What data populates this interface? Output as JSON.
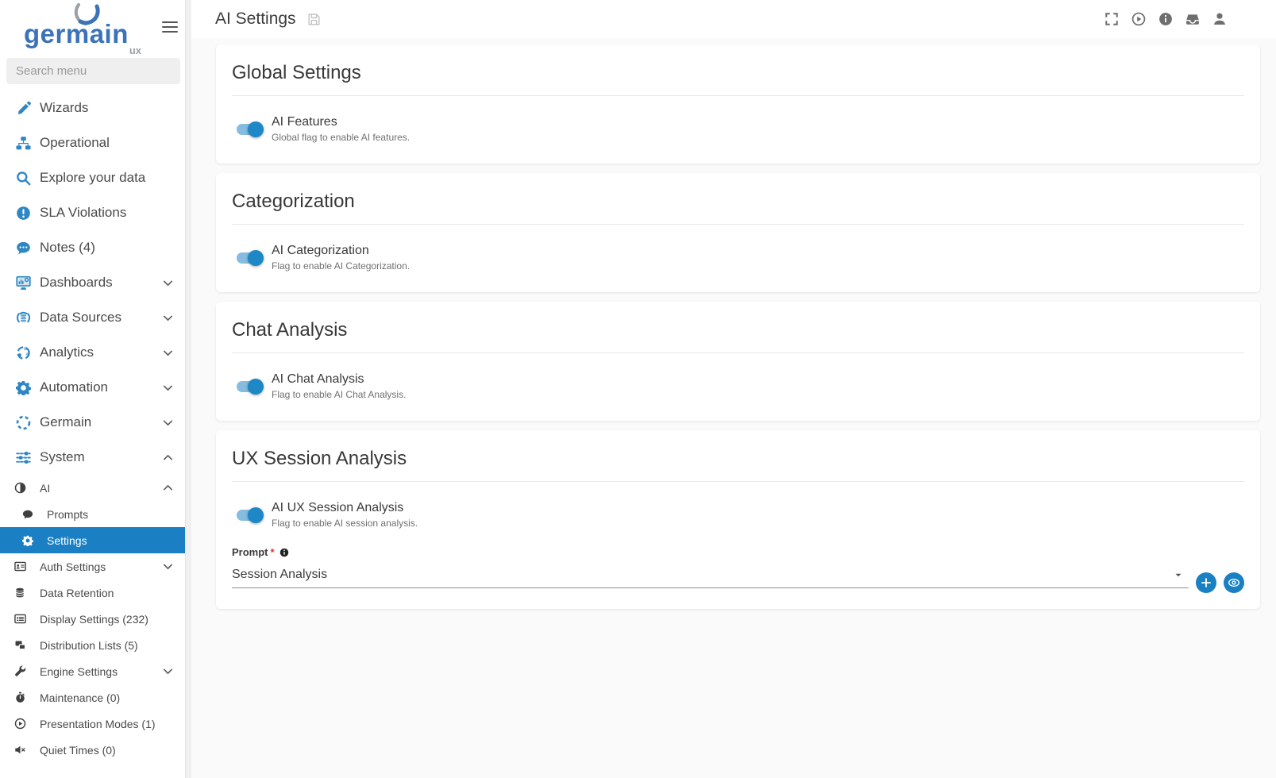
{
  "colors": {
    "accent_blue": "#1b7fc3",
    "toggle_track": "#85bcdf",
    "toggle_knob": "#1e87c6",
    "logo_blue": "#3b72b8",
    "sidebar_selected_bg": "#1b7fc3",
    "content_background": "#fafafa"
  },
  "logo": {
    "text": "germain",
    "sub": "ux"
  },
  "sidebar": {
    "search": {
      "placeholder": "Search menu"
    },
    "items": [
      {
        "id": "wizards",
        "label": "Wizards",
        "icon": "pencil",
        "level": 0
      },
      {
        "id": "operational",
        "label": "Operational",
        "icon": "sitemap",
        "level": 0
      },
      {
        "id": "explore-your-data",
        "label": "Explore your data",
        "icon": "search",
        "level": 0
      },
      {
        "id": "sla-violations",
        "label": "SLA Violations",
        "icon": "exclamation-circle",
        "level": 0
      },
      {
        "id": "notes",
        "label": "Notes (4)",
        "icon": "comment-dots",
        "level": 0
      },
      {
        "id": "dashboards",
        "label": "Dashboards",
        "icon": "dashboard-monitor",
        "level": 0,
        "chevron": "down"
      },
      {
        "id": "data-sources",
        "label": "Data Sources",
        "icon": "database-signal",
        "level": 0,
        "chevron": "down"
      },
      {
        "id": "analytics",
        "label": "Analytics",
        "icon": "analytics-cycle",
        "level": 0,
        "chevron": "down"
      },
      {
        "id": "automation",
        "label": "Automation",
        "icon": "gear",
        "level": 0,
        "chevron": "down"
      },
      {
        "id": "germain",
        "label": "Germain",
        "icon": "dashed-circle",
        "level": 0,
        "chevron": "down"
      },
      {
        "id": "system",
        "label": "System",
        "icon": "sliders",
        "level": 0,
        "chevron": "up"
      },
      {
        "id": "ai",
        "label": "AI",
        "icon": "adjust",
        "level": 1,
        "chevron": "up"
      },
      {
        "id": "prompts",
        "label": "Prompts",
        "icon": "comment",
        "level": 2
      },
      {
        "id": "settings",
        "label": "Settings",
        "icon": "gear",
        "level": 2,
        "selected": true
      },
      {
        "id": "auth-settings",
        "label": "Auth Settings",
        "icon": "id-card",
        "level": 1,
        "chevron": "down"
      },
      {
        "id": "data-retention",
        "label": "Data Retention",
        "icon": "coins",
        "level": 1
      },
      {
        "id": "display-settings",
        "label": "Display Settings  (232)",
        "icon": "list-alt",
        "level": 1
      },
      {
        "id": "distribution-lists",
        "label": "Distribution Lists  (5)",
        "icon": "share-boxes",
        "level": 1
      },
      {
        "id": "engine-settings",
        "label": "Engine Settings",
        "icon": "wrench",
        "level": 1,
        "chevron": "down"
      },
      {
        "id": "maintenance",
        "label": "Maintenance  (0)",
        "icon": "stopwatch",
        "level": 1
      },
      {
        "id": "presentation-modes",
        "label": "Presentation Modes  (1)",
        "icon": "play-circle",
        "level": 1
      },
      {
        "id": "quiet-times",
        "label": "Quiet Times  (0)",
        "icon": "volume-mute",
        "level": 1
      }
    ]
  },
  "topbar": {
    "title": "AI Settings",
    "icons": [
      "save",
      "fullscreen",
      "play-circle",
      "info-circle",
      "inbox",
      "user"
    ]
  },
  "main": {
    "sections": [
      {
        "heading": "Global Settings",
        "toggle": {
          "label": "AI Features",
          "description": "Global flag to enable AI features.",
          "on": true
        }
      },
      {
        "heading": "Categorization",
        "toggle": {
          "label": "AI Categorization",
          "description": "Flag to enable AI Categorization.",
          "on": true
        }
      },
      {
        "heading": "Chat Analysis",
        "toggle": {
          "label": "AI Chat Analysis",
          "description": "Flag to enable AI Chat Analysis.",
          "on": true
        }
      },
      {
        "heading": "UX Session Analysis",
        "toggle": {
          "label": "AI UX Session Analysis",
          "description": "Flag to enable AI session analysis.",
          "on": true
        },
        "prompt": {
          "label": "Prompt",
          "required": "*",
          "value": "Session Analysis"
        }
      }
    ]
  }
}
